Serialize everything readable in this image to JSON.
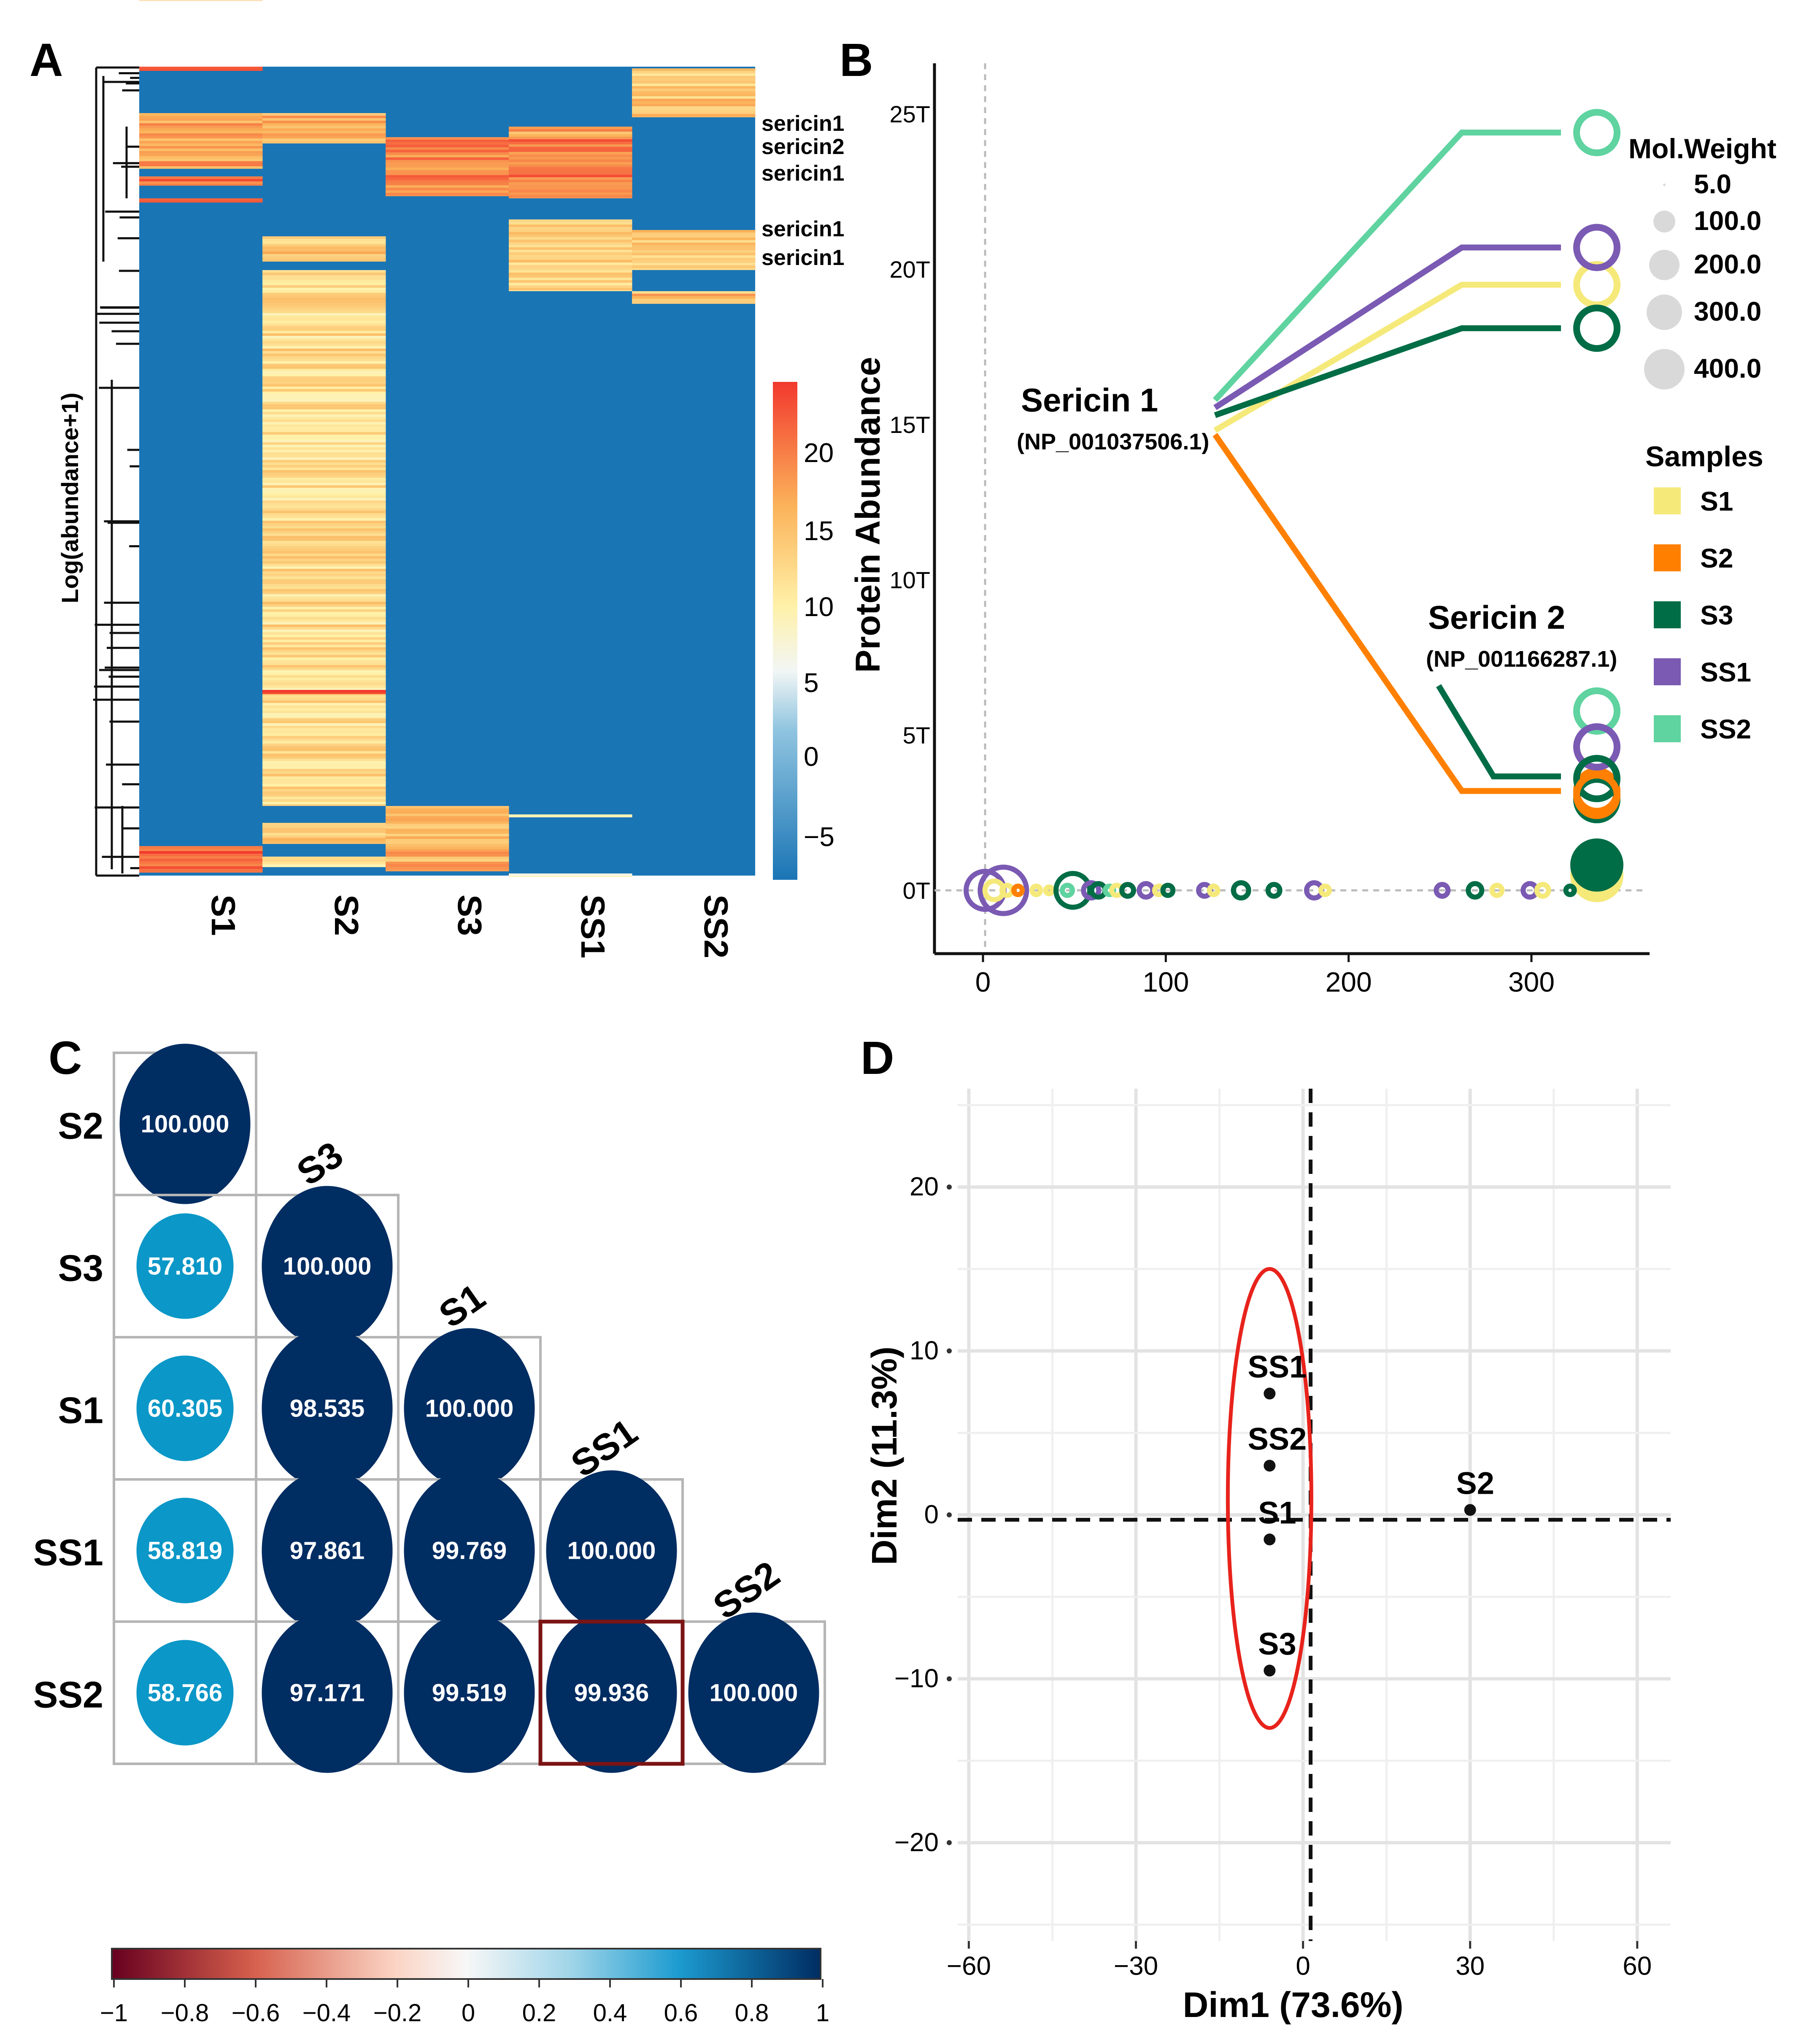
{
  "colors": {
    "S1": "#f5e97a",
    "S2": "#ff8000",
    "S3": "#006d46",
    "SS1": "#7a5ab3",
    "SS2": "#5fd3a0",
    "heat_low": "#1a75b5",
    "heat_high": "#f2392e",
    "corr_dark": "#002d62",
    "corr_light": "#0b97c7",
    "ellipse": "#e8231c"
  },
  "panels": {
    "A": {
      "letter": "A",
      "row_labels": [
        "sericin1",
        "sericin2",
        "sericin1",
        "sericin1",
        "sericin1"
      ],
      "columns": [
        "S1",
        "S2",
        "S3",
        "SS1",
        "SS2"
      ],
      "y_label": "Log(abundance+1)",
      "legend_ticks": [
        "20",
        "15",
        "10",
        "5",
        "0",
        "−5"
      ]
    },
    "B": {
      "letter": "B",
      "y_label": "Protein  Abundance",
      "callout1_name": "Sericin 1",
      "callout1_id": "(NP_001037506.1)",
      "callout2_name": "Sericin 2",
      "callout2_id": "(NP_001166287.1)",
      "size_legend_title": "Mol.Weight",
      "size_legend_values": [
        "5.0",
        "100.0",
        "200.0",
        "300.0",
        "400.0"
      ],
      "samples_legend_title": "Samples",
      "samples": [
        "S1",
        "S2",
        "S3",
        "SS1",
        "SS2"
      ]
    },
    "C": {
      "letter": "C",
      "labels": [
        "S2",
        "S3",
        "S1",
        "SS1",
        "SS2"
      ],
      "values": [
        [
          "100.000"
        ],
        [
          "57.810",
          "100.000"
        ],
        [
          "60.305",
          "98.535",
          "100.000"
        ],
        [
          "58.819",
          "97.861",
          "99.769",
          "100.000"
        ],
        [
          "58.766",
          "97.171",
          "99.519",
          "99.936",
          "100.000"
        ]
      ],
      "colorbar_ticks": [
        "−1",
        "−0.8",
        "−0.6",
        "−0.4",
        "−0.2",
        "0",
        "0.2",
        "0.4",
        "0.6",
        "0.8",
        "1"
      ]
    },
    "D": {
      "letter": "D",
      "x_label": "Dim1 (73.6%)",
      "y_label": "Dim2 (11.3%)"
    }
  },
  "chart_data": [
    {
      "id": "A",
      "type": "heatmap",
      "title": "",
      "columns": [
        "S1",
        "S2",
        "S3",
        "SS1",
        "SS2"
      ],
      "ylabel": "Log(abundance+1)",
      "color_range": [
        -7,
        24
      ],
      "legend_ticks": [
        20,
        15,
        10,
        5,
        0,
        -5
      ],
      "annotated_rows": [
        "sericin1",
        "sericin2",
        "sericin1",
        "sericin1",
        "sericin1"
      ]
    },
    {
      "id": "B",
      "type": "scatter",
      "xlabel": "",
      "ylabel": "Protein  Abundance",
      "x_ticks": [
        0,
        100,
        200,
        300
      ],
      "y_ticks": [
        "0T",
        "5T",
        "10T",
        "15T",
        "20T",
        "25T"
      ],
      "xlim": [
        -20,
        358
      ],
      "ylim": [
        -2,
        27
      ],
      "size_legend": [
        5,
        100,
        200,
        300,
        400
      ],
      "series": [
        {
          "name": "S1",
          "sericin1": 19.5,
          "sericin2": 3.0
        },
        {
          "name": "S2",
          "sericin1": 3.2,
          "sericin2": 3.2
        },
        {
          "name": "S3",
          "sericin1": 18.1,
          "sericin2": 3.6
        },
        {
          "name": "SS1",
          "sericin1": 20.7,
          "sericin2": 4.6
        },
        {
          "name": "SS2",
          "sericin1": 24.4,
          "sericin2": 5.6
        }
      ],
      "annotations": [
        "Sericin 1 (NP_001037506.1)",
        "Sericin 2 (NP_001166287.1)"
      ]
    },
    {
      "id": "C",
      "type": "heatmap",
      "labels": [
        "S2",
        "S3",
        "S1",
        "SS1",
        "SS2"
      ],
      "matrix": [
        [
          100.0
        ],
        [
          57.81,
          100.0
        ],
        [
          60.305,
          98.535,
          100.0
        ],
        [
          58.819,
          97.861,
          99.769,
          100.0
        ],
        [
          58.766,
          97.171,
          99.519,
          99.936,
          100.0
        ]
      ],
      "colorbar_range": [
        -1,
        1
      ]
    },
    {
      "id": "D",
      "type": "scatter",
      "xlabel": "Dim1 (73.6%)",
      "ylabel": "Dim2 (11.3%)",
      "xlim": [
        -62,
        66
      ],
      "ylim": [
        -26,
        26
      ],
      "x_ticks": [
        -60,
        -30,
        0,
        30,
        60
      ],
      "y_ticks": [
        20,
        10,
        0,
        -10,
        -20
      ],
      "points": [
        {
          "label": "SS1",
          "x": -6,
          "y": 7.4
        },
        {
          "label": "SS2",
          "x": -6,
          "y": 3.0
        },
        {
          "label": "S1",
          "x": -6,
          "y": -1.5
        },
        {
          "label": "S3",
          "x": -6,
          "y": -9.5
        },
        {
          "label": "S2",
          "x": 30,
          "y": 0.3
        }
      ],
      "ellipse": {
        "cx": -6,
        "cy": 1,
        "rx": 7.5,
        "ry": 14
      }
    }
  ]
}
